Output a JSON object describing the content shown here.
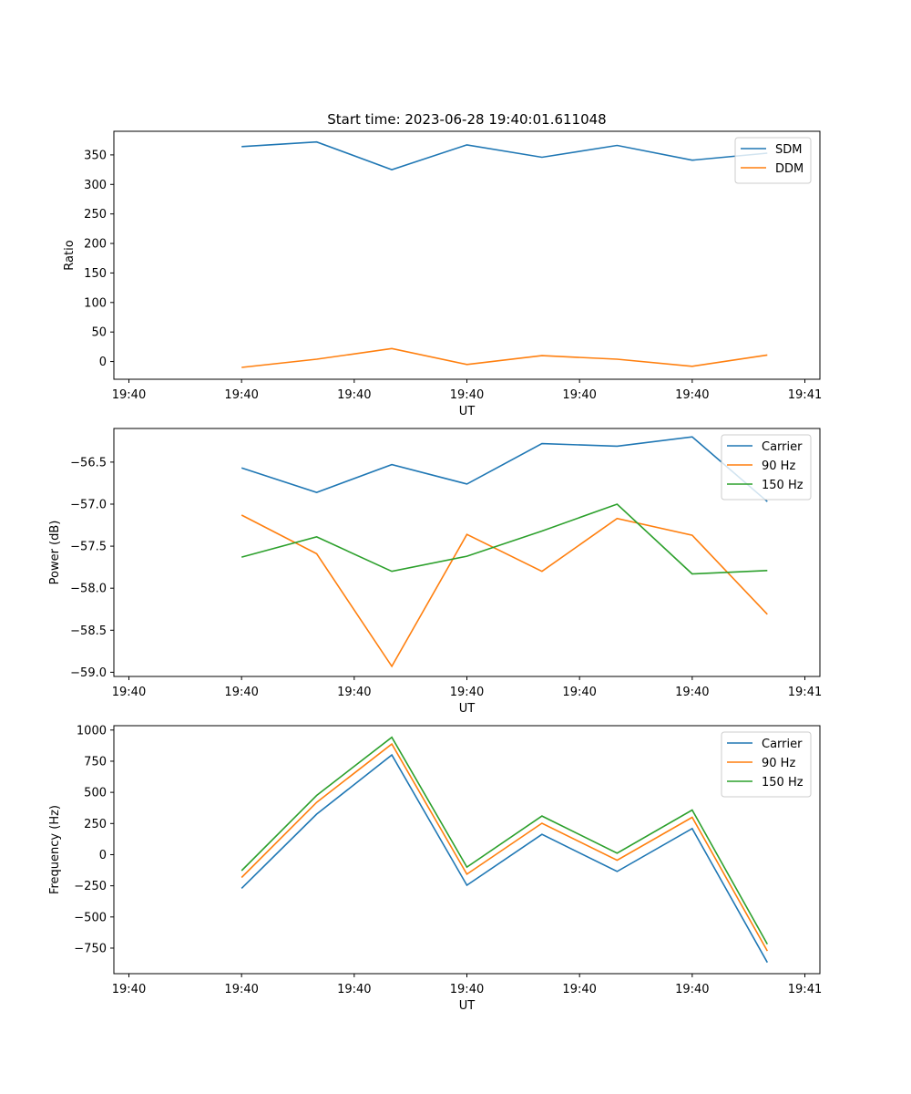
{
  "figure_title": "Start time: 2023-06-28 19:40:01.611048",
  "chart_data": [
    {
      "type": "line",
      "title": "Start time: 2023-06-28 19:40:01.611048",
      "xlabel": "UT",
      "ylabel": "Ratio",
      "x": [
        1,
        2,
        3,
        4,
        5,
        6,
        7,
        8
      ],
      "xlim": [
        -0.7,
        8.7
      ],
      "xticks": [
        -0.5,
        1.0,
        2.5,
        4.0,
        5.5,
        7.0,
        8.5
      ],
      "xtick_labels": [
        "19:40",
        "19:40",
        "19:40",
        "19:40",
        "19:40",
        "19:40",
        "19:41"
      ],
      "ylim": [
        -30,
        390
      ],
      "yticks": [
        0,
        50,
        100,
        150,
        200,
        250,
        300,
        350
      ],
      "ytick_labels": [
        "0",
        "50",
        "100",
        "150",
        "200",
        "250",
        "300",
        "350"
      ],
      "legend_position": "top-right",
      "series": [
        {
          "name": "SDM",
          "color": "#1f77b4",
          "values": [
            364,
            372,
            325,
            367,
            346,
            366,
            341,
            353
          ]
        },
        {
          "name": "DDM",
          "color": "#ff7f0e",
          "values": [
            -10,
            4,
            22,
            -5,
            10,
            4,
            -8,
            11
          ]
        }
      ]
    },
    {
      "type": "line",
      "title": "",
      "xlabel": "UT",
      "ylabel": "Power (dB)",
      "x": [
        1,
        2,
        3,
        4,
        5,
        6,
        7,
        8
      ],
      "xlim": [
        -0.7,
        8.7
      ],
      "xticks": [
        -0.5,
        1.0,
        2.5,
        4.0,
        5.5,
        7.0,
        8.5
      ],
      "xtick_labels": [
        "19:40",
        "19:40",
        "19:40",
        "19:40",
        "19:40",
        "19:40",
        "19:41"
      ],
      "ylim": [
        -59.05,
        -56.1
      ],
      "yticks": [
        -59.0,
        -58.5,
        -58.0,
        -57.5,
        -57.0,
        -56.5
      ],
      "ytick_labels": [
        "−59.0",
        "−58.5",
        "−58.0",
        "−57.5",
        "−57.0",
        "−56.5"
      ],
      "legend_position": "top-right",
      "series": [
        {
          "name": "Carrier",
          "color": "#1f77b4",
          "values": [
            -56.57,
            -56.86,
            -56.53,
            -56.76,
            -56.28,
            -56.31,
            -56.2,
            -56.97
          ]
        },
        {
          "name": "90 Hz",
          "color": "#ff7f0e",
          "values": [
            -57.13,
            -57.59,
            -58.93,
            -57.36,
            -57.8,
            -57.17,
            -57.37,
            -58.31
          ]
        },
        {
          "name": "150 Hz",
          "color": "#2ca02c",
          "values": [
            -57.63,
            -57.39,
            -57.8,
            -57.62,
            -57.32,
            -57.0,
            -57.83,
            -57.79
          ]
        }
      ]
    },
    {
      "type": "line",
      "title": "",
      "xlabel": "UT",
      "ylabel": "Frequency (Hz)",
      "x": [
        1,
        2,
        3,
        4,
        5,
        6,
        7,
        8
      ],
      "xlim": [
        -0.7,
        8.7
      ],
      "xticks": [
        -0.5,
        1.0,
        2.5,
        4.0,
        5.5,
        7.0,
        8.5
      ],
      "xtick_labels": [
        "19:40",
        "19:40",
        "19:40",
        "19:40",
        "19:40",
        "19:40",
        "19:41"
      ],
      "ylim": [
        -955,
        1035
      ],
      "yticks": [
        -750,
        -500,
        -250,
        0,
        250,
        500,
        750,
        1000
      ],
      "ytick_labels": [
        "−750",
        "−500",
        "−250",
        "0",
        "250",
        "500",
        "750",
        "1000"
      ],
      "legend_position": "top-right",
      "series": [
        {
          "name": "Carrier",
          "color": "#1f77b4",
          "values": [
            -270,
            325,
            800,
            -245,
            163,
            -135,
            210,
            -865
          ]
        },
        {
          "name": "90 Hz",
          "color": "#ff7f0e",
          "values": [
            -183,
            420,
            888,
            -157,
            252,
            -45,
            300,
            -773
          ]
        },
        {
          "name": "150 Hz",
          "color": "#2ca02c",
          "values": [
            -128,
            475,
            942,
            -100,
            310,
            12,
            358,
            -718
          ]
        }
      ]
    }
  ]
}
